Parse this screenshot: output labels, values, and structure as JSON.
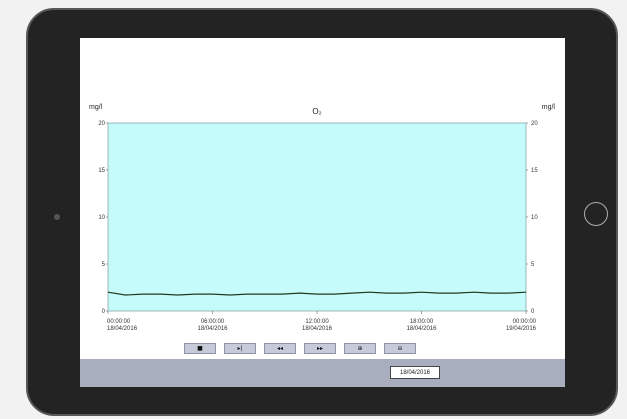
{
  "chart_data": {
    "type": "line",
    "title": "O₂",
    "y_unit_left": "mg/l",
    "y_unit_right": "mg/l",
    "ylim": [
      0,
      20
    ],
    "y_ticks": [
      "0",
      "5",
      "10",
      "15",
      "20"
    ],
    "x_ticks": [
      {
        "time": "00:00:00",
        "date": "18/04/2016"
      },
      {
        "time": "06:00:00",
        "date": "18/04/2016"
      },
      {
        "time": "12:00:00",
        "date": "18/04/2016"
      },
      {
        "time": "18:00:00",
        "date": "18/04/2016"
      },
      {
        "time": "00:00:00",
        "date": "19/04/2016"
      }
    ],
    "x_hours": [
      0,
      1,
      2,
      3,
      4,
      5,
      6,
      7,
      8,
      9,
      10,
      11,
      12,
      13,
      14,
      15,
      16,
      17,
      18,
      19,
      20,
      21,
      22,
      23,
      24
    ],
    "values": [
      2.0,
      1.7,
      1.8,
      1.8,
      1.7,
      1.8,
      1.8,
      1.7,
      1.8,
      1.8,
      1.8,
      1.9,
      1.8,
      1.8,
      1.9,
      2.0,
      1.9,
      1.9,
      2.0,
      1.9,
      1.9,
      2.0,
      1.9,
      1.9,
      2.0
    ],
    "plot_background": "#c6fbfc",
    "line_color": "#1e3a1e",
    "grid": false
  },
  "controls": [
    {
      "name": "stop-button",
      "icon": "stop-icon",
      "glyph": "■"
    },
    {
      "name": "step-forward-button",
      "icon": "step-forward-icon",
      "glyph": "▸|"
    },
    {
      "name": "rewind-button",
      "icon": "rewind-icon",
      "glyph": "◂◂"
    },
    {
      "name": "fast-forward-button",
      "icon": "fast-forward-icon",
      "glyph": "▸▸"
    },
    {
      "name": "zoom-in-button",
      "icon": "zoom-in-icon",
      "glyph": "⊕"
    },
    {
      "name": "zoom-out-button",
      "icon": "zoom-out-icon",
      "glyph": "⊖"
    }
  ],
  "footer": {
    "date_value": "18/04/2016"
  }
}
